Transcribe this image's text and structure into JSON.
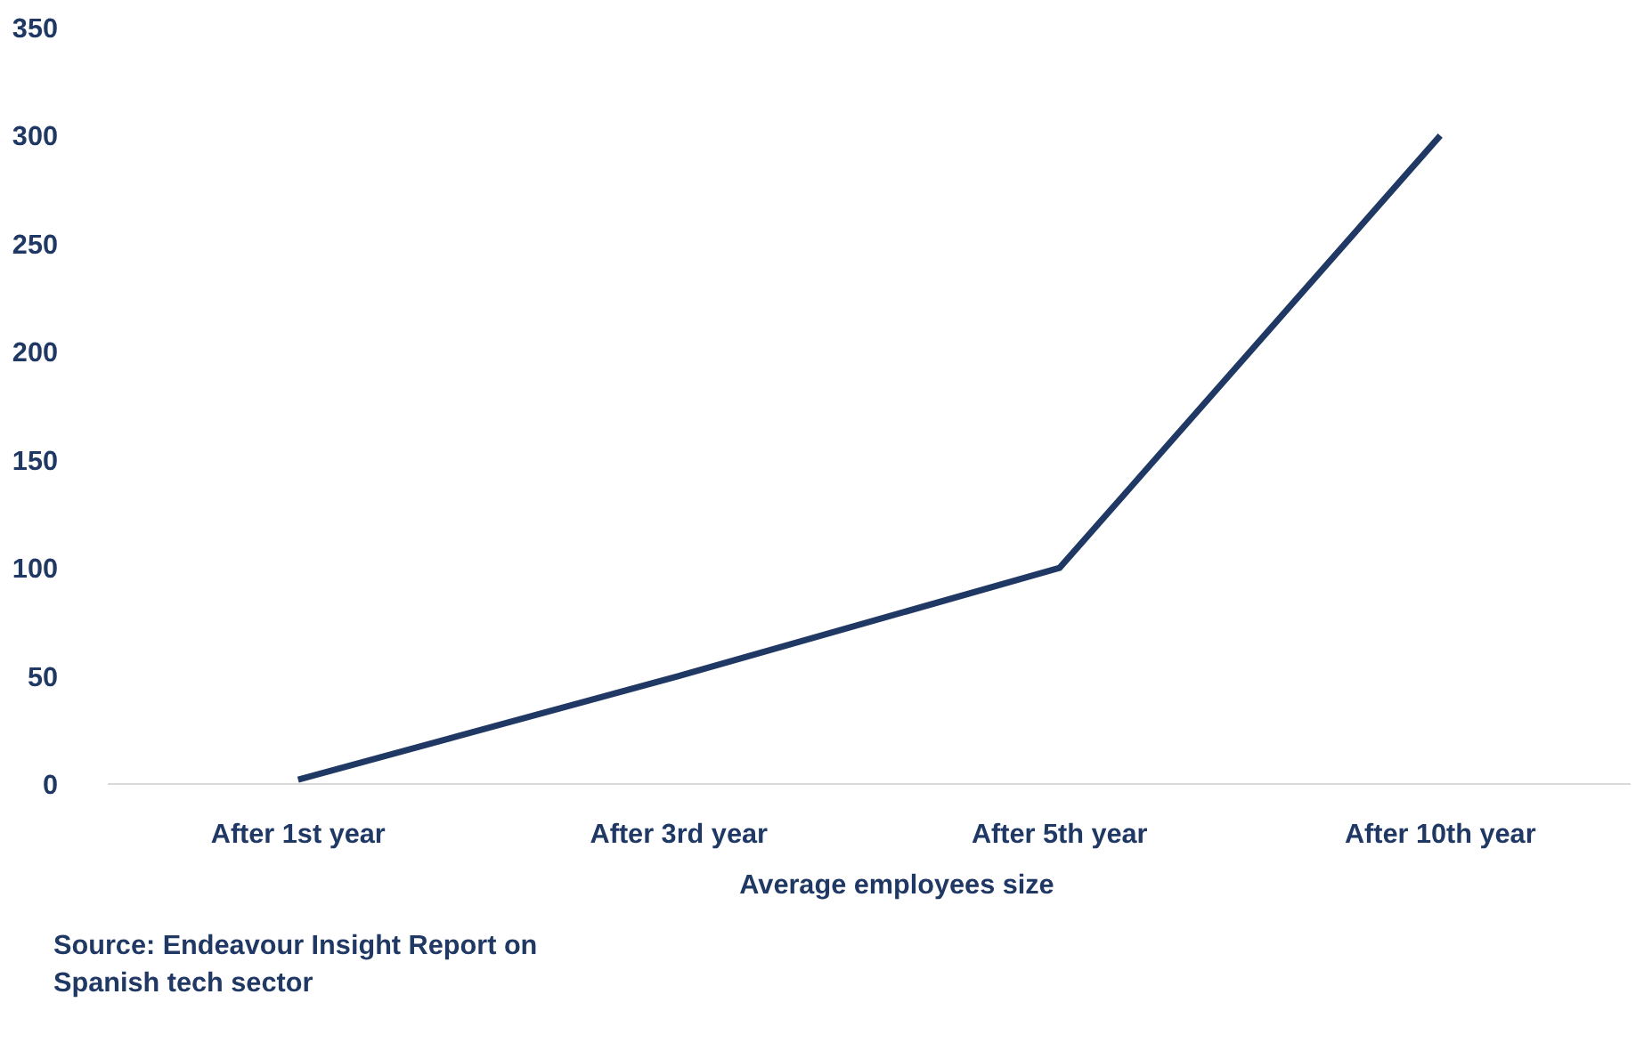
{
  "chart_data": {
    "type": "line",
    "categories": [
      "After 1st year",
      "After 3rd year",
      "After 5th year",
      "After 10th year"
    ],
    "series": [
      {
        "name": "Average employees size",
        "color": "#203864",
        "values": [
          2,
          50,
          100,
          300
        ]
      }
    ],
    "ylim": [
      0,
      350
    ],
    "yticks": [
      0,
      50,
      100,
      150,
      200,
      250,
      300,
      350
    ],
    "grid": false,
    "legend": "bottom",
    "marker": "none",
    "line_style": "solid",
    "annotations": [
      "Source: Endeavour Insight Report on Spanish tech sector"
    ]
  }
}
